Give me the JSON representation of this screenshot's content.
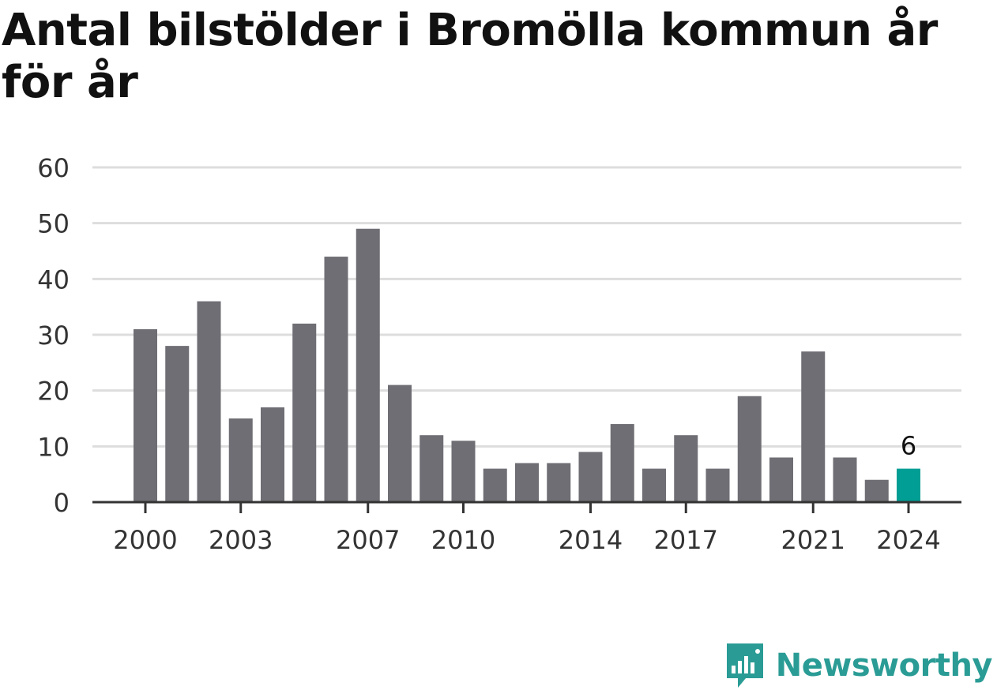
{
  "title": "Antal bilstölder i Bromölla kommun år för år",
  "brand": {
    "name": "Newsworthy"
  },
  "colors": {
    "bar": "#6f6e74",
    "highlight": "#009e94",
    "grid": "#dddddd",
    "axis": "#333333",
    "brand": "#2a9c95"
  },
  "chart_data": {
    "type": "bar",
    "categories": [
      "2000",
      "2001",
      "2002",
      "2003",
      "2004",
      "2005",
      "2006",
      "2007",
      "2008",
      "2009",
      "2010",
      "2011",
      "2012",
      "2013",
      "2014",
      "2015",
      "2016",
      "2017",
      "2018",
      "2019",
      "2020",
      "2021",
      "2022",
      "2023",
      "2024"
    ],
    "values": [
      31,
      28,
      36,
      15,
      17,
      32,
      44,
      49,
      21,
      12,
      11,
      6,
      7,
      7,
      9,
      14,
      6,
      12,
      6,
      19,
      8,
      27,
      8,
      4,
      6
    ],
    "x_tick_labels": [
      "2000",
      "2003",
      "2007",
      "2010",
      "2014",
      "2017",
      "2021",
      "2024"
    ],
    "y_ticks": [
      0,
      10,
      20,
      30,
      40,
      50,
      60
    ],
    "ylim": [
      0,
      60
    ],
    "highlight_category": "2024",
    "annotations": [
      {
        "category": "2024",
        "text": "6"
      }
    ],
    "grid": true
  }
}
